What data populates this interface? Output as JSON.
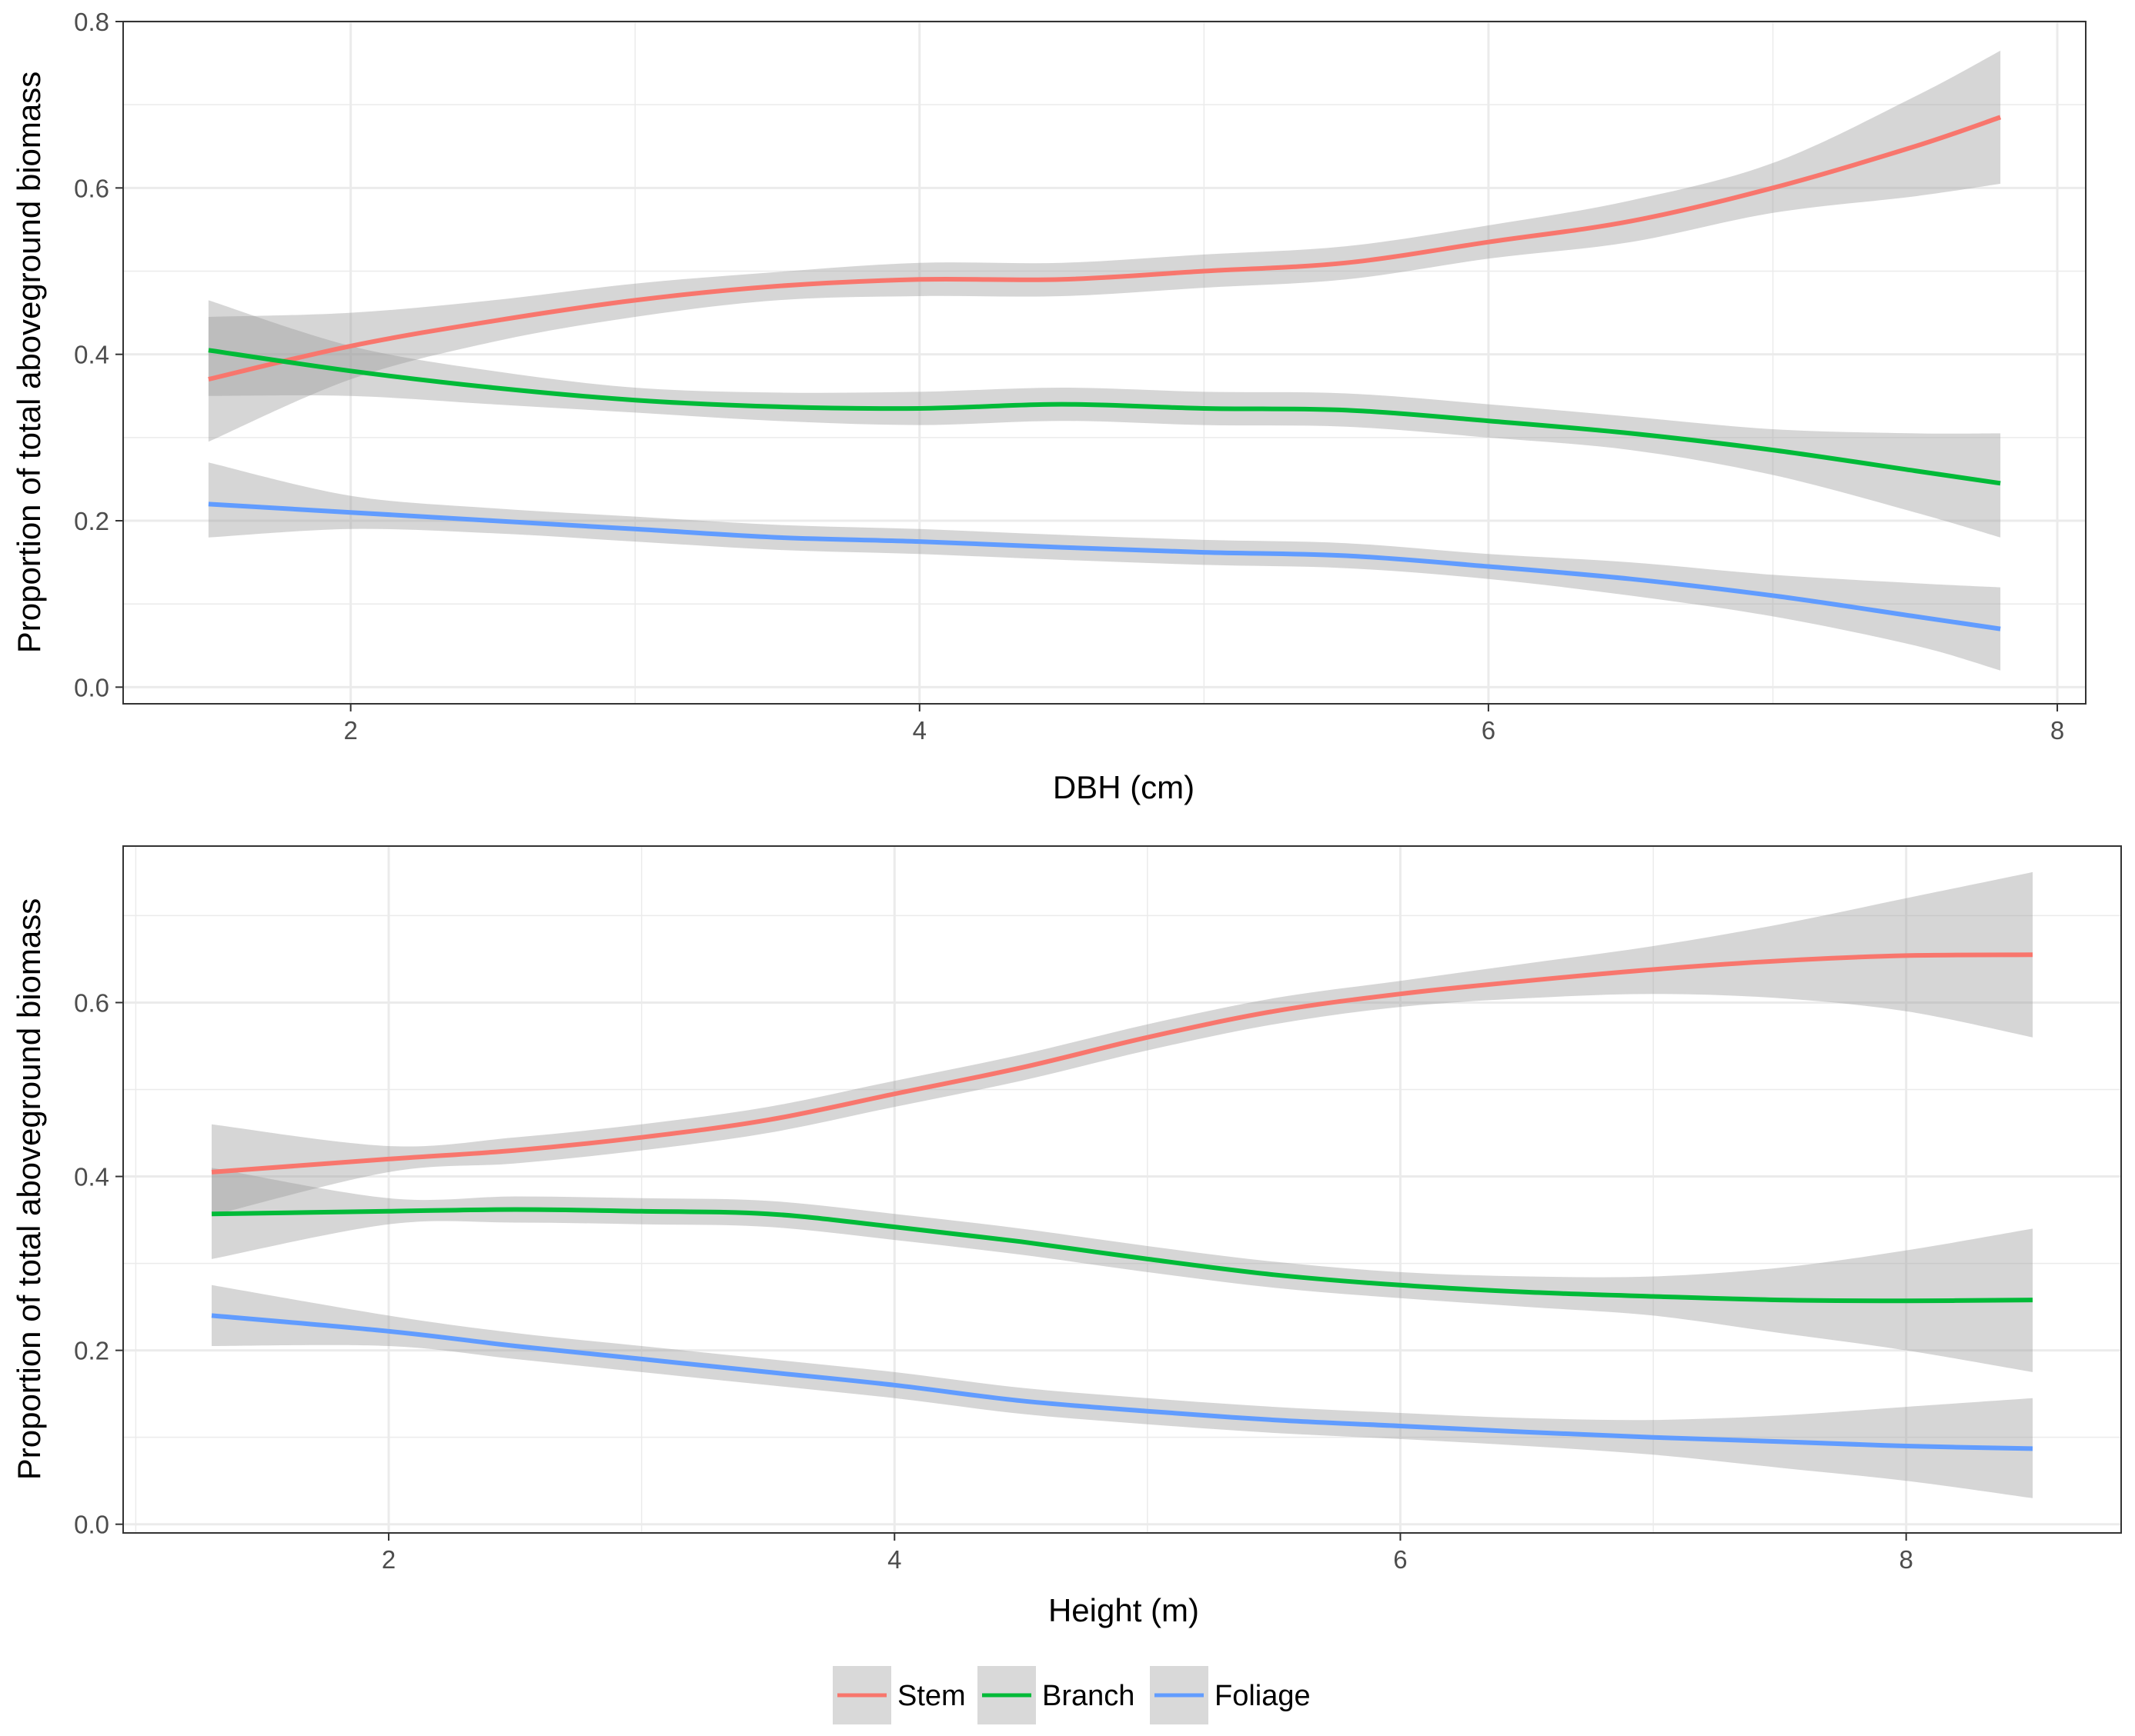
{
  "colors": {
    "Stem": "#F8766D",
    "Branch": "#00BA38",
    "Foliage": "#619CFF",
    "ribbon": "#999999",
    "grid": "#ebebeb",
    "panel_border": "#333333",
    "tick_text": "#4d4d4d"
  },
  "legend": {
    "entries": [
      "Stem",
      "Branch",
      "Foliage"
    ],
    "placement": "bottom"
  },
  "chart_data": [
    {
      "type": "line",
      "title": "",
      "xlabel": "DBH (cm)",
      "ylabel": "Proportion of total aboveground biomass",
      "xlim": [
        1.2,
        8.1
      ],
      "ylim": [
        -0.02,
        0.8
      ],
      "xticks": [
        2,
        4,
        6,
        8
      ],
      "xtick_labels": [
        "2",
        "4",
        "6",
        "8"
      ],
      "yticks": [
        0.0,
        0.2,
        0.4,
        0.6,
        0.8
      ],
      "ytick_labels": [
        "0.0",
        "0.2",
        "0.4",
        "0.6",
        "0.8"
      ],
      "grid": true,
      "x": [
        1.5,
        2.0,
        2.5,
        3.0,
        3.5,
        4.0,
        4.5,
        5.0,
        5.5,
        6.0,
        6.5,
        7.0,
        7.5,
        7.8
      ],
      "series": [
        {
          "name": "Stem",
          "values": [
            0.37,
            0.41,
            0.44,
            0.465,
            0.482,
            0.49,
            0.49,
            0.5,
            0.51,
            0.535,
            0.56,
            0.6,
            0.65,
            0.685
          ],
          "lower": [
            0.295,
            0.37,
            0.415,
            0.445,
            0.465,
            0.47,
            0.47,
            0.48,
            0.49,
            0.515,
            0.535,
            0.57,
            0.59,
            0.605
          ],
          "upper": [
            0.445,
            0.45,
            0.465,
            0.485,
            0.499,
            0.51,
            0.51,
            0.52,
            0.53,
            0.555,
            0.585,
            0.63,
            0.71,
            0.765
          ]
        },
        {
          "name": "Branch",
          "values": [
            0.405,
            0.38,
            0.36,
            0.345,
            0.337,
            0.335,
            0.34,
            0.335,
            0.333,
            0.32,
            0.305,
            0.285,
            0.26,
            0.245
          ],
          "lower": [
            0.35,
            0.35,
            0.34,
            0.33,
            0.32,
            0.315,
            0.32,
            0.315,
            0.313,
            0.3,
            0.285,
            0.255,
            0.21,
            0.18
          ],
          "upper": [
            0.465,
            0.41,
            0.38,
            0.36,
            0.354,
            0.355,
            0.36,
            0.355,
            0.353,
            0.34,
            0.325,
            0.31,
            0.305,
            0.305
          ]
        },
        {
          "name": "Foliage",
          "values": [
            0.22,
            0.21,
            0.2,
            0.19,
            0.18,
            0.175,
            0.168,
            0.162,
            0.158,
            0.145,
            0.13,
            0.11,
            0.085,
            0.07
          ],
          "lower": [
            0.18,
            0.19,
            0.185,
            0.175,
            0.165,
            0.16,
            0.153,
            0.147,
            0.143,
            0.13,
            0.11,
            0.085,
            0.05,
            0.02
          ],
          "upper": [
            0.27,
            0.23,
            0.215,
            0.205,
            0.195,
            0.19,
            0.183,
            0.177,
            0.173,
            0.16,
            0.15,
            0.135,
            0.125,
            0.12
          ]
        }
      ]
    },
    {
      "type": "line",
      "title": "",
      "xlabel": "Height (m)",
      "ylabel": "Proportion of total aboveground biomass",
      "xlim": [
        0.95,
        8.85
      ],
      "ylim": [
        -0.01,
        0.78
      ],
      "xticks": [
        2,
        4,
        6,
        8
      ],
      "xtick_labels": [
        "2",
        "4",
        "6",
        "8"
      ],
      "yticks": [
        0.0,
        0.2,
        0.4,
        0.6
      ],
      "ytick_labels": [
        "0.0",
        "0.2",
        "0.4",
        "0.6"
      ],
      "grid": true,
      "x": [
        1.3,
        2.0,
        2.5,
        3.0,
        3.5,
        4.0,
        4.5,
        5.0,
        5.5,
        6.0,
        6.5,
        7.0,
        7.5,
        8.0,
        8.5
      ],
      "series": [
        {
          "name": "Stem",
          "values": [
            0.405,
            0.42,
            0.43,
            0.445,
            0.465,
            0.495,
            0.525,
            0.56,
            0.59,
            0.61,
            0.625,
            0.638,
            0.648,
            0.654,
            0.655
          ],
          "lower": [
            0.355,
            0.405,
            0.415,
            0.43,
            0.45,
            0.48,
            0.51,
            0.545,
            0.575,
            0.595,
            0.605,
            0.61,
            0.605,
            0.59,
            0.56
          ],
          "upper": [
            0.46,
            0.435,
            0.445,
            0.46,
            0.48,
            0.51,
            0.54,
            0.575,
            0.605,
            0.625,
            0.645,
            0.665,
            0.69,
            0.72,
            0.75
          ]
        },
        {
          "name": "Branch",
          "values": [
            0.357,
            0.36,
            0.362,
            0.36,
            0.357,
            0.342,
            0.325,
            0.305,
            0.287,
            0.275,
            0.267,
            0.262,
            0.258,
            0.257,
            0.258
          ],
          "lower": [
            0.305,
            0.345,
            0.347,
            0.345,
            0.342,
            0.327,
            0.31,
            0.29,
            0.272,
            0.26,
            0.25,
            0.24,
            0.22,
            0.2,
            0.175
          ],
          "upper": [
            0.41,
            0.375,
            0.377,
            0.375,
            0.372,
            0.357,
            0.34,
            0.32,
            0.302,
            0.29,
            0.285,
            0.285,
            0.295,
            0.315,
            0.34
          ]
        },
        {
          "name": "Foliage",
          "values": [
            0.24,
            0.222,
            0.205,
            0.19,
            0.175,
            0.16,
            0.142,
            0.13,
            0.12,
            0.113,
            0.106,
            0.1,
            0.095,
            0.09,
            0.087
          ],
          "lower": [
            0.205,
            0.205,
            0.19,
            0.175,
            0.16,
            0.145,
            0.127,
            0.115,
            0.105,
            0.098,
            0.09,
            0.08,
            0.065,
            0.05,
            0.03
          ],
          "upper": [
            0.275,
            0.24,
            0.22,
            0.205,
            0.19,
            0.175,
            0.157,
            0.145,
            0.135,
            0.128,
            0.122,
            0.12,
            0.125,
            0.135,
            0.145
          ]
        }
      ]
    }
  ]
}
